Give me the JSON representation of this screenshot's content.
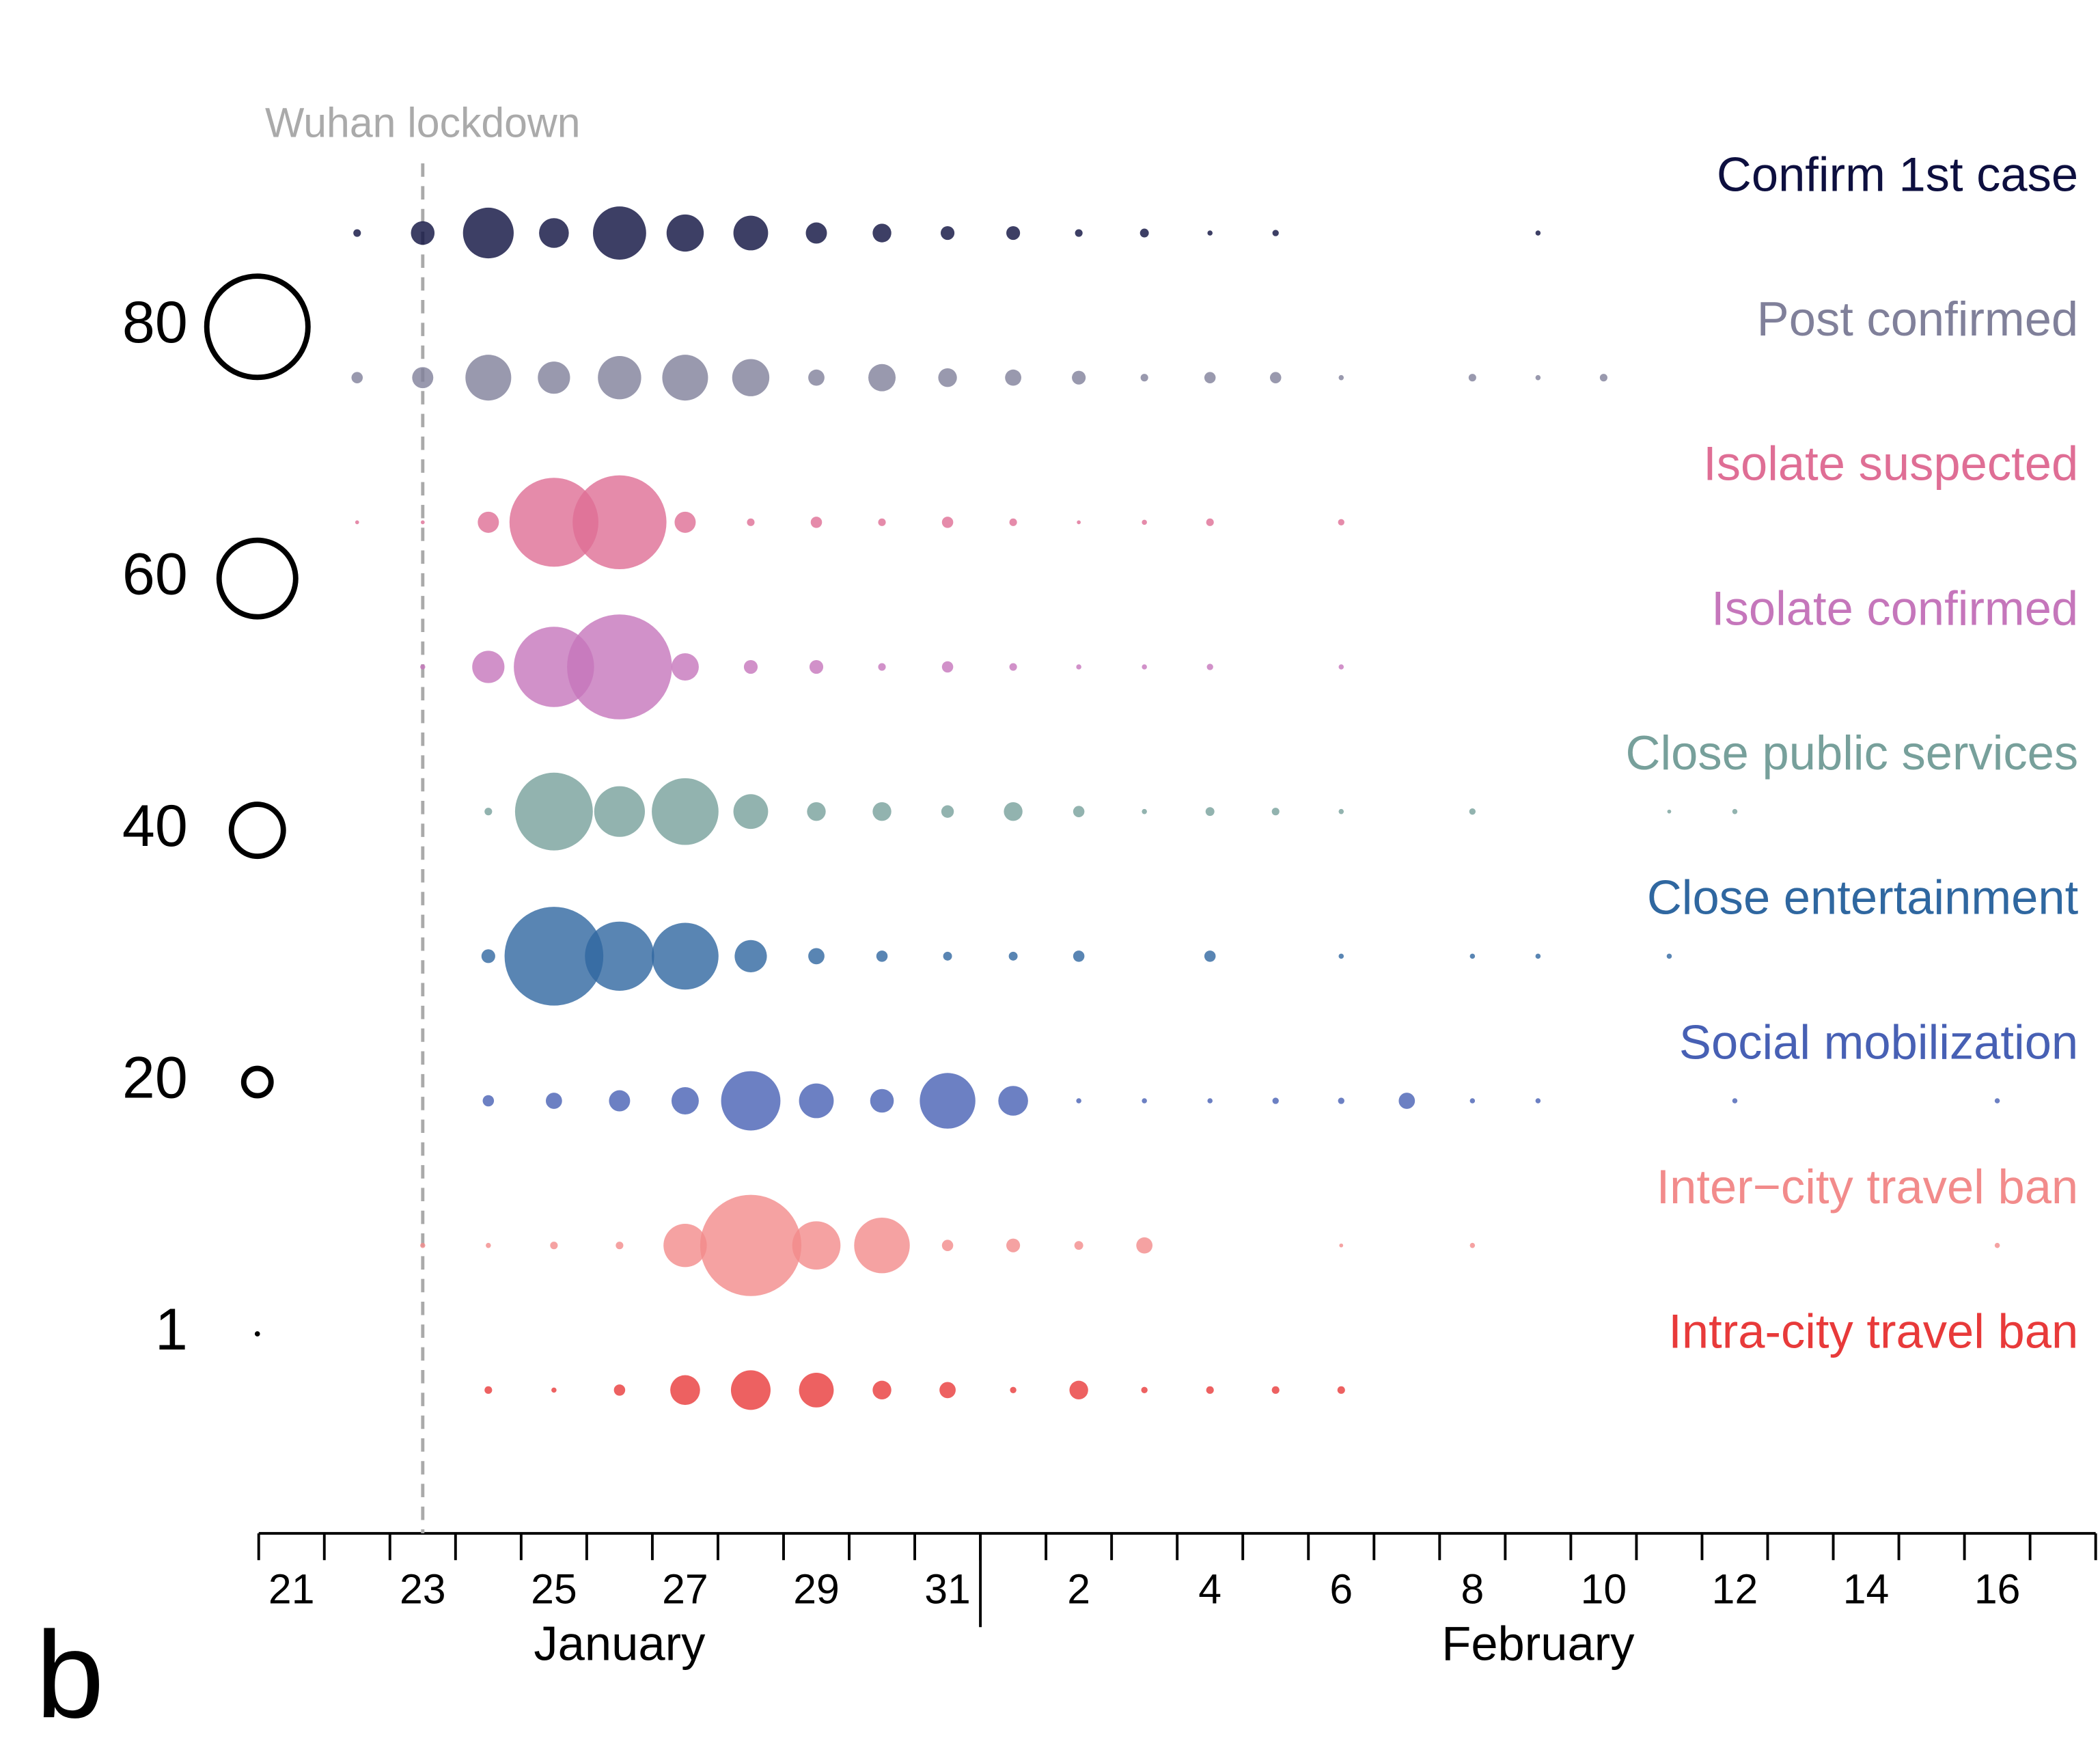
{
  "chart_data": {
    "type": "bubble",
    "panel_label": "b",
    "annotation": {
      "text": "Wuhan lockdown",
      "at": "23"
    },
    "categories": [
      "21",
      null,
      "23",
      null,
      "25",
      null,
      "27",
      null,
      "29",
      null,
      "31",
      null,
      "2",
      null,
      "4",
      null,
      "6",
      null,
      "8",
      null,
      "10",
      null,
      "12",
      null,
      "14",
      null,
      "16",
      null
    ],
    "month_labels": [
      "January",
      "February"
    ],
    "size_legend": [
      1,
      20,
      40,
      60,
      80
    ],
    "series": [
      {
        "name": "Confirm 1st case",
        "color": "#0d0f3f",
        "values": [
          null,
          4,
          17,
          39,
          22,
          41,
          28,
          26,
          15,
          13,
          9,
          9,
          4,
          5,
          2,
          3,
          null,
          null,
          null,
          2,
          null,
          null,
          null,
          null,
          null,
          null,
          null,
          null
        ]
      },
      {
        "name": "Post confirmed",
        "color": "#80809a",
        "values": [
          null,
          7,
          15,
          35,
          24,
          33,
          35,
          28,
          11,
          20,
          13,
          11,
          9,
          4,
          7,
          7,
          2,
          null,
          4,
          2,
          4,
          null,
          null,
          null,
          null,
          null,
          null,
          null
        ]
      },
      {
        "name": "Isolate suspected",
        "color": "#df6e95",
        "values": [
          null,
          1,
          1,
          15,
          70,
          74,
          15,
          4,
          7,
          4,
          7,
          4,
          1,
          2,
          4,
          null,
          3,
          null,
          null,
          null,
          null,
          null,
          null,
          null,
          null,
          null,
          null,
          null
        ]
      },
      {
        "name": "Isolate confirmed",
        "color": "#c576bb",
        "values": [
          null,
          null,
          2,
          24,
          63,
          83,
          20,
          9,
          9,
          4,
          7,
          4,
          2,
          2,
          3,
          null,
          2,
          null,
          null,
          null,
          null,
          null,
          null,
          null,
          null,
          null,
          null,
          null
        ]
      },
      {
        "name": "Close public services",
        "color": "#77a09b",
        "values": [
          null,
          null,
          null,
          4,
          61,
          39,
          52,
          26,
          13,
          13,
          8,
          13,
          7,
          2,
          5,
          4,
          2,
          null,
          3,
          null,
          null,
          1,
          2,
          null,
          null,
          null,
          null,
          null
        ]
      },
      {
        "name": "Close entertainment",
        "color": "#2f67a0",
        "values": [
          null,
          null,
          null,
          9,
          78,
          54,
          52,
          24,
          11,
          7,
          5,
          5,
          7,
          null,
          7,
          null,
          2,
          null,
          2,
          2,
          null,
          2,
          null,
          null,
          null,
          null,
          null,
          null
        ]
      },
      {
        "name": "Social mobilization",
        "color": "#4760b4",
        "values": [
          null,
          null,
          null,
          7,
          11,
          15,
          20,
          46,
          26,
          17,
          43,
          22,
          2,
          2,
          2,
          3,
          3,
          11,
          2,
          2,
          null,
          null,
          2,
          null,
          null,
          null,
          2,
          null
        ]
      },
      {
        "name": "Inter−city travel ban",
        "color": "#f28b8b",
        "values": [
          null,
          null,
          2,
          2,
          4,
          4,
          33,
          80,
          37,
          43,
          7,
          9,
          5,
          11,
          null,
          null,
          1,
          null,
          2,
          null,
          null,
          null,
          null,
          null,
          null,
          null,
          2,
          null
        ]
      },
      {
        "name": "Intra-city travel ban",
        "color": "#e83a3a",
        "values": [
          null,
          null,
          null,
          4,
          2,
          7,
          22,
          30,
          26,
          13,
          11,
          3,
          13,
          3,
          4,
          4,
          4,
          null,
          null,
          null,
          null,
          null,
          null,
          null,
          null,
          null,
          null,
          null
        ]
      }
    ]
  }
}
